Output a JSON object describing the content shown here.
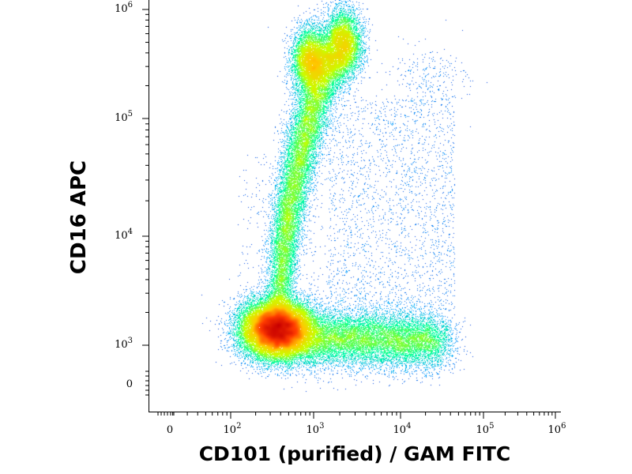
{
  "chart_data": {
    "type": "scatter",
    "style": "flow-cytometry-density-dot-plot",
    "xlabel": "CD101 (purified) / GAM FITC",
    "ylabel": "CD16 APC",
    "x_scale": "log",
    "y_scale": "log",
    "x_ticks": [
      {
        "base": "0",
        "exp": ""
      },
      {
        "base": "10",
        "exp": "2"
      },
      {
        "base": "10",
        "exp": "3"
      },
      {
        "base": "10",
        "exp": "4"
      },
      {
        "base": "10",
        "exp": "5"
      },
      {
        "base": "10",
        "exp": "6"
      }
    ],
    "y_ticks": [
      {
        "base": "0",
        "exp": ""
      },
      {
        "base": "10",
        "exp": "3"
      },
      {
        "base": "10",
        "exp": "4"
      },
      {
        "base": "10",
        "exp": "5"
      },
      {
        "base": "10",
        "exp": "6"
      }
    ],
    "populations": [
      {
        "name": "",
        "center_x": 350,
        "center_y": 1400,
        "density": "high"
      },
      {
        "name": "",
        "center_x": 1600,
        "center_y": 420000,
        "density": "medium"
      },
      {
        "name": "",
        "center_x": 25000,
        "center_y": 250000,
        "density": "low"
      }
    ],
    "colormap": [
      "#0000c8",
      "#00a0ff",
      "#00ffa0",
      "#c8ff00",
      "#ffc800",
      "#ff3c00",
      "#c80000"
    ]
  }
}
